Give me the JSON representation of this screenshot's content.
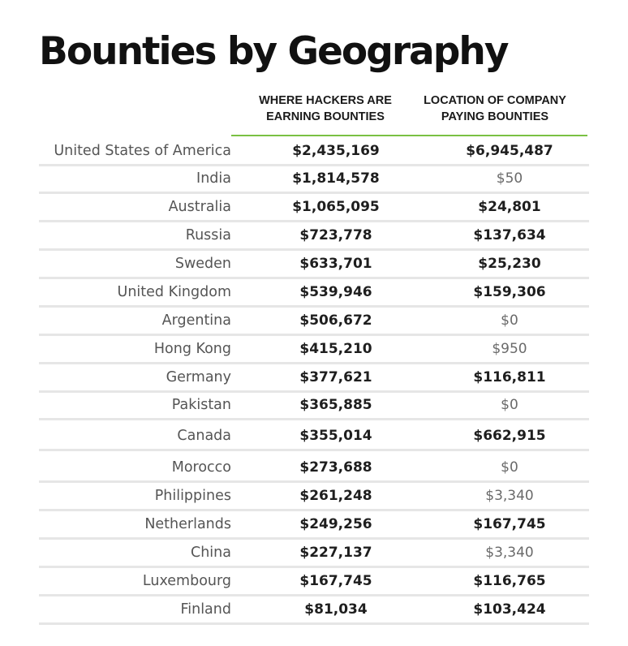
{
  "chart_data": {
    "type": "table",
    "title": "Bounties by Geography",
    "columns": [
      "WHERE HACKERS ARE EARNING BOUNTIES",
      "LOCATION OF COMPANY PAYING BOUNTIES"
    ],
    "header_lines": [
      [
        "WHERE HACKERS ARE",
        "EARNING BOUNTIES"
      ],
      [
        "LOCATION OF COMPANY",
        "PAYING BOUNTIES"
      ]
    ],
    "accent_color": "#7ac143",
    "rows": [
      {
        "country": "United States of America",
        "earning": "$2,435,169",
        "paying": "$6,945,487"
      },
      {
        "country": "India",
        "earning": "$1,814,578",
        "paying": "$50"
      },
      {
        "country": "Australia",
        "earning": "$1,065,095",
        "paying": "$24,801"
      },
      {
        "country": "Russia",
        "earning": "$723,778",
        "paying": "$137,634"
      },
      {
        "country": "Sweden",
        "earning": "$633,701",
        "paying": "$25,230"
      },
      {
        "country": "United Kingdom",
        "earning": "$539,946",
        "paying": "$159,306"
      },
      {
        "country": "Argentina",
        "earning": "$506,672",
        "paying": "$0"
      },
      {
        "country": "Hong Kong",
        "earning": "$415,210",
        "paying": "$950"
      },
      {
        "country": "Germany",
        "earning": "$377,621",
        "paying": "$116,811"
      },
      {
        "country": "Pakistan",
        "earning": "$365,885",
        "paying": "$0"
      },
      {
        "country": "Canada",
        "earning": "$355,014",
        "paying": "$662,915"
      },
      {
        "country": "Morocco",
        "earning": "$273,688",
        "paying": "$0"
      },
      {
        "country": "Philippines",
        "earning": "$261,248",
        "paying": "$3,340"
      },
      {
        "country": "Netherlands",
        "earning": "$249,256",
        "paying": "$167,745"
      },
      {
        "country": "China",
        "earning": "$227,137",
        "paying": "$3,340"
      },
      {
        "country": "Luxembourg",
        "earning": "$167,745",
        "paying": "$116,765"
      },
      {
        "country": "Finland",
        "earning": "$81,034",
        "paying": "$103,424"
      }
    ]
  }
}
